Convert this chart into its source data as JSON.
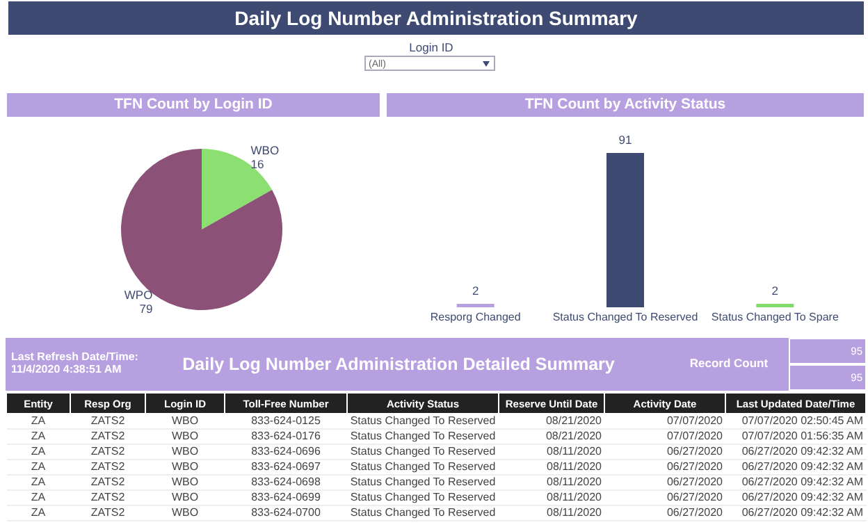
{
  "chart_data": [
    {
      "type": "other",
      "title": "Daily Log Number Administration Summary",
      "annotations": [
        "Login ID",
        "(All)"
      ]
    },
    {
      "type": "pie",
      "title": "TFN Count by Login ID",
      "categories": [
        "WBO",
        "WPO"
      ],
      "values": [
        16,
        79
      ],
      "colors": [
        "#8ce071",
        "#8b5177"
      ],
      "data_labels": true
    },
    {
      "type": "bar",
      "title": "TFN Count by Activity Status",
      "categories": [
        "Resporg Changed",
        "Status Changed To Reserved",
        "Status Changed To Spare"
      ],
      "values": [
        2,
        91,
        2
      ],
      "colors": [
        "#b7a0e0",
        "#3e4a72",
        "#7ddc6a"
      ],
      "data_labels": true
    },
    {
      "type": "other",
      "title": "Daily Log Number Administration Detailed  Summary",
      "annotations": [
        "Last Refresh Date/Time:",
        "11/4/2020 4:38:51 AM",
        "Record Count",
        "95",
        "95"
      ],
      "categories": [
        "Entity",
        "Resp Org",
        "Login ID",
        "Toll-Free Number",
        "Activity Status",
        "Reserve Until Date",
        "Activity Date",
        "Last Updated Date/Time"
      ],
      "cell_labels": [
        [
          "ZA",
          "ZATS2",
          "WBO",
          "833-624-0125",
          "Status Changed To Reserved",
          "08/21/2020",
          "07/07/2020",
          "07/07/2020 02:50:45 AM"
        ],
        [
          "ZA",
          "ZATS2",
          "WBO",
          "833-624-0176",
          "Status Changed To Reserved",
          "08/21/2020",
          "07/07/2020",
          "07/07/2020 01:56:35 AM"
        ],
        [
          "ZA",
          "ZATS2",
          "WBO",
          "833-624-0696",
          "Status Changed To Reserved",
          "08/11/2020",
          "06/27/2020",
          "06/27/2020 09:42:32 AM"
        ],
        [
          "ZA",
          "ZATS2",
          "WBO",
          "833-624-0697",
          "Status Changed To Reserved",
          "08/11/2020",
          "06/27/2020",
          "06/27/2020 09:42:32 AM"
        ],
        [
          "ZA",
          "ZATS2",
          "WBO",
          "833-624-0698",
          "Status Changed To Reserved",
          "08/11/2020",
          "06/27/2020",
          "06/27/2020 09:42:32 AM"
        ],
        [
          "ZA",
          "ZATS2",
          "WBO",
          "833-624-0699",
          "Status Changed To Reserved",
          "08/11/2020",
          "06/27/2020",
          "06/27/2020 09:42:32 AM"
        ],
        [
          "ZA",
          "ZATS2",
          "WBO",
          "833-624-0700",
          "Status Changed To Reserved",
          "08/11/2020",
          "06/27/2020",
          "06/27/2020 09:42:32 AM"
        ]
      ]
    }
  ]
}
